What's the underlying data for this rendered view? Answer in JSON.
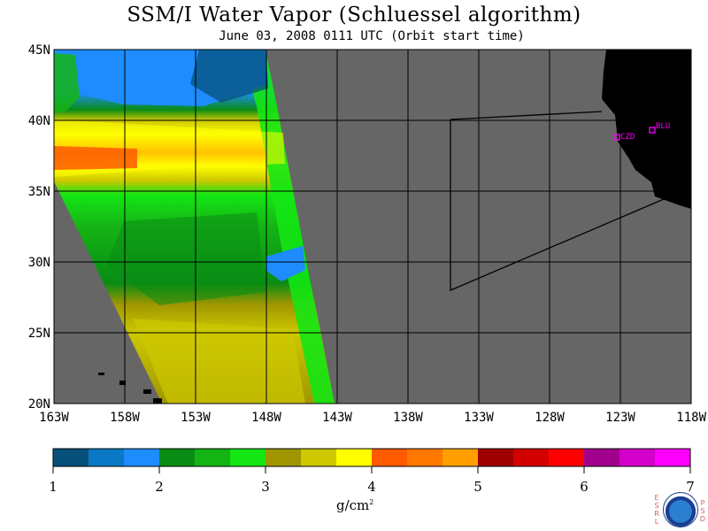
{
  "title": "SSM/I Water Vapor (Schluessel algorithm)",
  "subtitle": "June 03, 2008  0111 UTC  (Orbit start time)",
  "colors": {
    "land_missing": "#666666",
    "landmass": "#000000",
    "station_marker": "#ff00ff",
    "grid": "#000000"
  },
  "map": {
    "lon_range": [
      -163,
      -118
    ],
    "lat_range": [
      20,
      45
    ],
    "lat_labels": [
      "45N",
      "40N",
      "35N",
      "30N",
      "25N",
      "20N"
    ],
    "lon_labels": [
      "163W",
      "158W",
      "153W",
      "148W",
      "143W",
      "138W",
      "133W",
      "128W",
      "123W",
      "118W"
    ],
    "stations": [
      {
        "label": "CZD"
      },
      {
        "label": "BLU"
      }
    ]
  },
  "colorbar": {
    "min": 1,
    "max": 7,
    "tick_labels": [
      "1",
      "2",
      "3",
      "4",
      "5",
      "6",
      "7"
    ],
    "colors": [
      "#06507a",
      "#0a78c4",
      "#1e8cff",
      "#0a8c14",
      "#14b414",
      "#14e614",
      "#a09600",
      "#cdc800",
      "#ffff00",
      "#ff5a00",
      "#ff7800",
      "#ffa000",
      "#a00000",
      "#d20000",
      "#ff0000",
      "#a0008c",
      "#d200c8",
      "#ff00ff"
    ],
    "unit_base": "g/cm",
    "unit_sup": "2"
  },
  "logo": {
    "left_text": "ESRL",
    "right_text": "PSD",
    "seal_text": "NOAA"
  }
}
